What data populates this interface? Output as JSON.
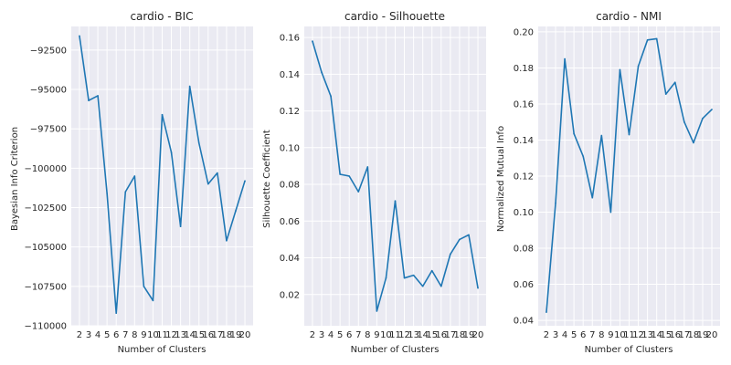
{
  "colors": {
    "line": "#1f77b4",
    "plot_background": "#eaeaf2",
    "grid": "#ffffff",
    "text": "#262626"
  },
  "chart_data": [
    {
      "type": "line",
      "title": "cardio - BIC",
      "xlabel": "Number of Clusters",
      "ylabel": "Bayesian Info Criterion",
      "x": [
        2,
        3,
        4,
        5,
        6,
        7,
        8,
        9,
        10,
        11,
        12,
        13,
        14,
        15,
        16,
        17,
        18,
        19,
        20
      ],
      "values": [
        -91600,
        -95700,
        -95400,
        -101600,
        -109200,
        -101500,
        -100500,
        -107500,
        -108400,
        -96600,
        -99000,
        -103700,
        -94800,
        -98400,
        -101000,
        -100300,
        -104600,
        -102700,
        -100800
      ],
      "ylim": [
        -110000,
        -91000
      ],
      "yticks": [
        -110000,
        -107500,
        -105000,
        -102500,
        -100000,
        -97500,
        -95000,
        -92500
      ],
      "ytick_labels": [
        "−110000",
        "−107500",
        "−105000",
        "−102500",
        "−100000",
        "−97500",
        "−95000",
        "−92500"
      ],
      "grid": true,
      "legend": "none"
    },
    {
      "type": "line",
      "title": "cardio - Silhouette",
      "xlabel": "Number of Clusters",
      "ylabel": "Silhouette Coefficient",
      "x": [
        2,
        3,
        4,
        5,
        6,
        7,
        8,
        9,
        10,
        11,
        12,
        13,
        14,
        15,
        16,
        17,
        18,
        19,
        20
      ],
      "values": [
        0.158,
        0.141,
        0.128,
        0.0855,
        0.0845,
        0.076,
        0.0895,
        0.011,
        0.029,
        0.071,
        0.029,
        0.0305,
        0.0245,
        0.033,
        0.0245,
        0.042,
        0.05,
        0.0525,
        0.0235
      ],
      "ylim": [
        0.003,
        0.166
      ],
      "yticks": [
        0.02,
        0.04,
        0.06,
        0.08,
        0.1,
        0.12,
        0.14,
        0.16
      ],
      "ytick_labels": [
        "0.02",
        "0.04",
        "0.06",
        "0.08",
        "0.10",
        "0.12",
        "0.14",
        "0.16"
      ],
      "grid": true,
      "legend": "none"
    },
    {
      "type": "line",
      "title": "cardio - NMI",
      "xlabel": "Number of Clusters",
      "ylabel": "Normalized Mutual Info",
      "x": [
        2,
        3,
        4,
        5,
        6,
        7,
        8,
        9,
        10,
        11,
        12,
        13,
        14,
        15,
        16,
        17,
        18,
        19,
        20
      ],
      "values": [
        0.0445,
        0.105,
        0.185,
        0.1435,
        0.131,
        0.108,
        0.1425,
        0.1,
        0.179,
        0.143,
        0.181,
        0.1955,
        0.1962,
        0.1655,
        0.172,
        0.15,
        0.1385,
        0.152,
        0.157
      ],
      "ylim": [
        0.037,
        0.203
      ],
      "yticks": [
        0.04,
        0.06,
        0.08,
        0.1,
        0.12,
        0.14,
        0.16,
        0.18,
        0.2
      ],
      "ytick_labels": [
        "0.04",
        "0.06",
        "0.08",
        "0.10",
        "0.12",
        "0.14",
        "0.16",
        "0.18",
        "0.20"
      ],
      "grid": true,
      "legend": "none"
    }
  ]
}
